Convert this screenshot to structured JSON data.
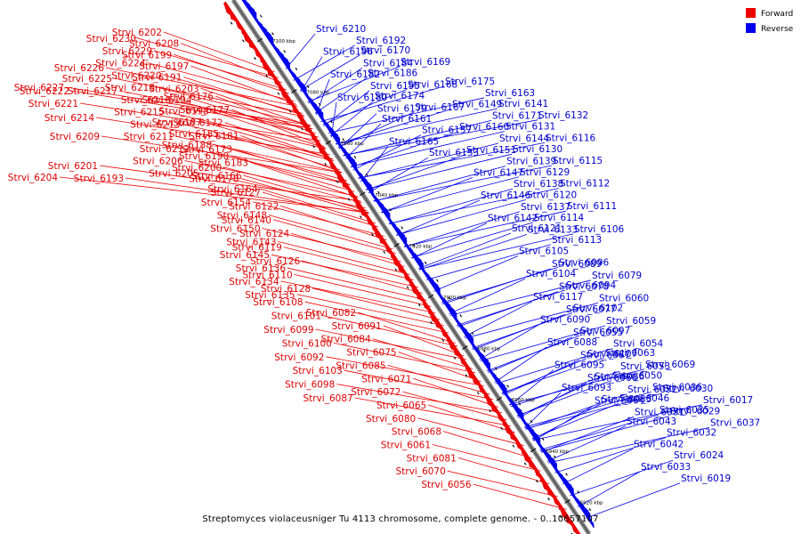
{
  "legend": {
    "forward": {
      "label": "Forward",
      "color": "#ee0000"
    },
    "reverse": {
      "label": "Reverse",
      "color": "#0000ee"
    }
  },
  "caption": "Streptomyces violaceusniger Tu 4113 chromosome, complete genome. - 0..10657107",
  "ticks": [
    "7100 kbp",
    "7080 kbp",
    "7060 kbp",
    "7040 kbp",
    "7020 kbp",
    "7000 kbp",
    "6980 kbp",
    "6960 kbp",
    "6940 kbp",
    "6920 kbp"
  ],
  "forward_genes": [
    "Strvi_6230",
    "Strvi_6229",
    "Strvi_6224",
    "Strvi_6220",
    "Strvi_6218",
    "Strvi_6216",
    "Strvi_6215",
    "Strvi_6213",
    "Strvi_6211",
    "Strvi_6212",
    "Strvi_6206",
    "Strvi_6205",
    "Strvi_6202",
    "Strvi_6208",
    "Strvi_6199",
    "Strvi_6197",
    "Strvi_6191",
    "Strvi_6203",
    "Strvi_6194",
    "Strvi_6198",
    "Strvi_6187",
    "Strvi_6185",
    "Strvi_6188",
    "Strvi_6190",
    "Strvi_6200",
    "Strvi_6178",
    "Strvi_6176",
    "Strvi_6177",
    "Strvi_6172",
    "Strvi_6181",
    "Strvi_6173",
    "Strvi_6183",
    "Strvi_6166",
    "Strvi_6164",
    "Strvi_6154",
    "Strvi_6148",
    "Strvi_6150",
    "Strvi_6143",
    "Strvi_6145",
    "Strvi_6136",
    "Strvi_6134",
    "Strvi_6135",
    "Strvi_6127",
    "Strvi_6122",
    "Strvi_6140",
    "Strvi_6124",
    "Strvi_6119",
    "Strvi_6126",
    "Strvi_6110",
    "Strvi_6128",
    "Strvi_6108",
    "Strvi_6101",
    "Strvi_6099",
    "Strvi_6100",
    "Strvi_6092",
    "Strvi_6103",
    "Strvi_6098",
    "Strvi_6087",
    "Strvi_6082",
    "Strvi_6091",
    "Strvi_6084",
    "Strvi_6075",
    "Strvi_6085",
    "Strvi_6071",
    "Strvi_6072",
    "Strvi_6065",
    "Strvi_6080",
    "Strvi_6068",
    "Strvi_6061",
    "Strvi_6081",
    "Strvi_6070",
    "Strvi_6056",
    "Strvi_6226",
    "Strvi_6225",
    "Strvi_6227",
    "Strvi_6222",
    "Strvi_6217",
    "Strvi_6221",
    "Strvi_6214",
    "Strvi_6209",
    "Strvi_6201",
    "Strvi_6204",
    "Strvi_6193"
  ],
  "reverse_genes": [
    "Strvi_6210",
    "Strvi_6192",
    "Strvi_6196",
    "Strvi_6184",
    "Strvi_6182",
    "Strvi_6195",
    "Strvi_6180",
    "Strvi_6179",
    "Strvi_6170",
    "Strvi_6169",
    "Strvi_6186",
    "Strvi_6168",
    "Strvi_6174",
    "Strvi_6167",
    "Strvi_6161",
    "Strvi_6157",
    "Strvi_6165",
    "Strvi_6153",
    "Strvi_6175",
    "Strvi_6163",
    "Strvi_6149",
    "Strvi_6171",
    "Strvi_6160",
    "Strvi_6144",
    "Strvi_6151",
    "Strvi_6139",
    "Strvi_6147",
    "Strvi_6138",
    "Strvi_6146",
    "Strvi_6137",
    "Strvi_6142",
    "Strvi_6133",
    "Strvi_6141",
    "Strvi_6132",
    "Strvi_6131",
    "Strvi_6116",
    "Strvi_6130",
    "Strvi_6115",
    "Strvi_6129",
    "Strvi_6112",
    "Strvi_6120",
    "Strvi_6111",
    "Strvi_6114",
    "Strvi_6106",
    "Strvi_6121",
    "Strvi_6113",
    "Strvi_6105",
    "Strvi_6096",
    "Strvi_6104",
    "Strvi_6094",
    "Strvi_6117",
    "Strvi_6102",
    "Strvi_6090",
    "Strvi_6097",
    "Strvi_6088",
    "Strvi_6107",
    "Strvi_6095",
    "Strvi_6086",
    "Strvi_6093",
    "Strvi_6083",
    "Strvi_6089",
    "Strvi_6079",
    "Strvi_6078",
    "Strvi_6060",
    "Strvi_6077",
    "Strvi_6059",
    "Strvi_6055",
    "Strvi_6054",
    "Strvi_6067",
    "Strvi_6053",
    "Strvi_6066",
    "Strvi_6052",
    "Strvi_6064",
    "Strvi_6051",
    "Strvi_6063",
    "Strvi_6069",
    "Strvi_6050",
    "Strvi_6036",
    "Strvi_6046",
    "Strvi_6035",
    "Strvi_6043",
    "Strvi_6032",
    "Strvi_6042",
    "Strvi_6024",
    "Strvi_6033",
    "Strvi_6019",
    "Strvi_6030",
    "Strvi_6017",
    "Strvi_6029",
    "Strvi_6037"
  ]
}
